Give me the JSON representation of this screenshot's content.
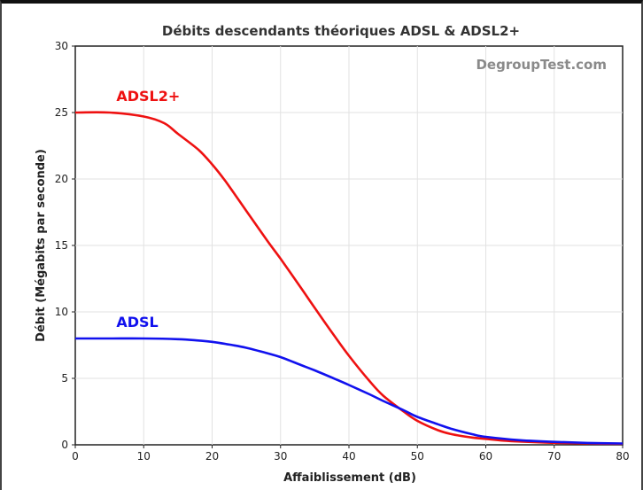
{
  "chart_data": {
    "type": "line",
    "title": "Débits descendants théoriques ADSL & ADSL2+",
    "watermark": "DegroupTest.com",
    "xlabel": "Affaiblissement (dB)",
    "ylabel": "Débit (Mégabits par seconde)",
    "xlim": [
      0,
      80
    ],
    "ylim": [
      0,
      30
    ],
    "xticks": [
      "0",
      "10",
      "20",
      "30",
      "40",
      "50",
      "60",
      "70",
      "80"
    ],
    "yticks": [
      "0",
      "5",
      "10",
      "15",
      "20",
      "25",
      "30"
    ],
    "grid": true,
    "series": [
      {
        "name": "ADSL2+",
        "color": "#ee1111",
        "x": [
          0,
          5,
          10,
          13,
          15,
          18,
          20,
          22,
          25,
          28,
          30,
          33,
          35,
          38,
          40,
          43,
          45,
          48,
          50,
          53,
          55,
          58,
          60,
          63,
          65,
          70,
          75,
          80
        ],
        "y": [
          25,
          25,
          24.7,
          24.2,
          23.4,
          22.2,
          21.1,
          19.8,
          17.6,
          15.4,
          14.0,
          11.8,
          10.3,
          8.1,
          6.7,
          4.8,
          3.7,
          2.5,
          1.8,
          1.1,
          0.8,
          0.55,
          0.45,
          0.3,
          0.25,
          0.15,
          0.1,
          0.08
        ]
      },
      {
        "name": "ADSL",
        "color": "#1111ee",
        "x": [
          0,
          5,
          10,
          15,
          18,
          20,
          23,
          25,
          28,
          30,
          33,
          35,
          38,
          40,
          43,
          45,
          48,
          50,
          53,
          55,
          58,
          60,
          65,
          70,
          75,
          80
        ],
        "y": [
          8,
          8,
          8,
          7.95,
          7.85,
          7.75,
          7.5,
          7.3,
          6.9,
          6.6,
          6.0,
          5.6,
          4.95,
          4.5,
          3.8,
          3.3,
          2.6,
          2.1,
          1.55,
          1.2,
          0.8,
          0.6,
          0.35,
          0.22,
          0.14,
          0.1
        ]
      }
    ],
    "series_labels_inline": true
  }
}
